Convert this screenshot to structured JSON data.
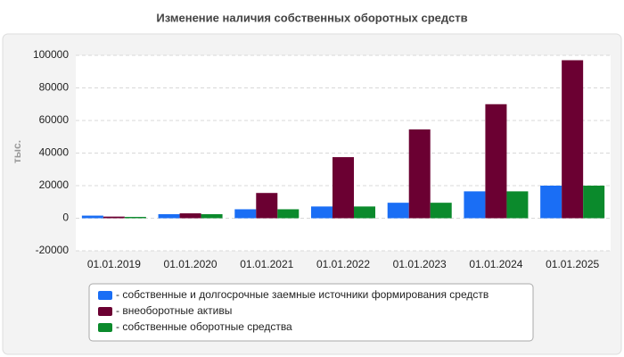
{
  "chart_data": {
    "type": "bar",
    "title": "Изменение наличия собственных оборотных средств",
    "ylabel": "тыс.",
    "categories": [
      "01.01.2019",
      "01.01.2020",
      "01.01.2021",
      "01.01.2022",
      "01.01.2023",
      "01.01.2024",
      "01.01.2025"
    ],
    "series": [
      {
        "name": "- собственные и долгосрочные заемные источники формирования средств",
        "color": "#1a6ef5",
        "values": [
          1600,
          2500,
          5500,
          7200,
          9500,
          16500,
          20000
        ]
      },
      {
        "name": "- внеоборотные активы",
        "color": "#6b0032",
        "values": [
          1000,
          3000,
          15500,
          37500,
          54500,
          70000,
          97000
        ]
      },
      {
        "name": "- собственные оборотные средства",
        "color": "#0b8a2c",
        "values": [
          800,
          2500,
          5500,
          7200,
          9500,
          16500,
          20000
        ]
      }
    ],
    "ylim": [
      -20000,
      100000
    ],
    "yticks": [
      -20000,
      0,
      20000,
      40000,
      60000,
      80000,
      100000
    ],
    "grid": true
  }
}
